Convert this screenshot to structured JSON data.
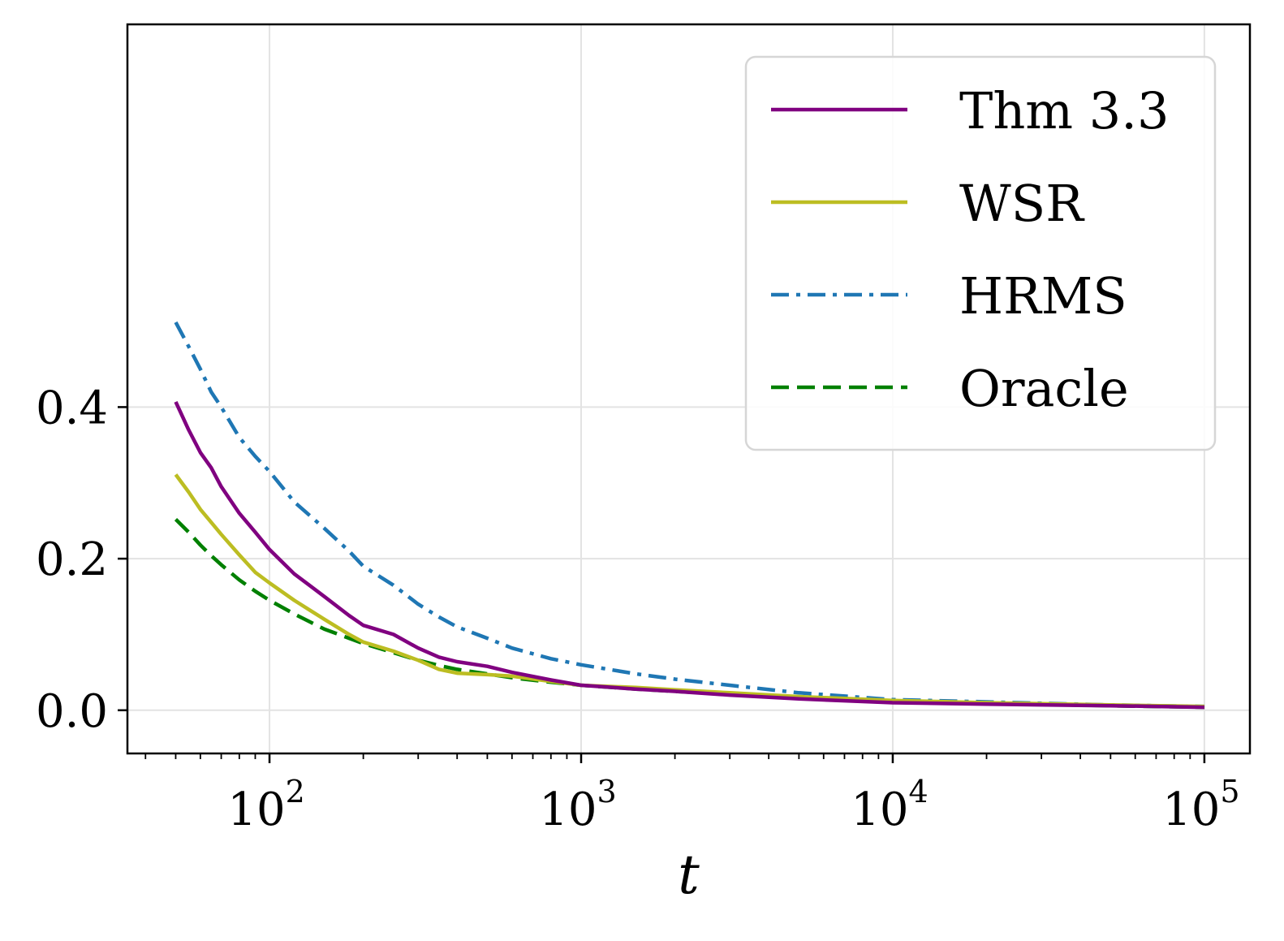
{
  "chart_data": {
    "type": "line",
    "xlabel": "t",
    "ylabel": "",
    "xscale": "log",
    "xlim": [
      35,
      140000
    ],
    "ylim": [
      -0.057,
      0.905
    ],
    "grid": true,
    "legend_position": "top-right",
    "x_ticks": [
      {
        "value": 100,
        "base": "10",
        "exp": "2"
      },
      {
        "value": 1000,
        "base": "10",
        "exp": "3"
      },
      {
        "value": 10000,
        "base": "10",
        "exp": "4"
      },
      {
        "value": 100000,
        "base": "10",
        "exp": "5"
      }
    ],
    "y_ticks": [
      {
        "value": 0.0,
        "label": "0.0"
      },
      {
        "value": 0.2,
        "label": "0.2"
      },
      {
        "value": 0.4,
        "label": "0.4"
      }
    ],
    "series": [
      {
        "name": "Thm 3.3",
        "color": "#800080",
        "dash": "solid",
        "x": [
          50,
          55,
          60,
          65,
          70,
          80,
          90,
          100,
          120,
          150,
          180,
          200,
          250,
          300,
          350,
          400,
          500,
          600,
          800,
          1000,
          1500,
          2000,
          3000,
          5000,
          10000,
          20000,
          50000,
          100000
        ],
        "y": [
          0.407,
          0.37,
          0.34,
          0.32,
          0.295,
          0.26,
          0.235,
          0.212,
          0.18,
          0.15,
          0.125,
          0.112,
          0.1,
          0.082,
          0.07,
          0.064,
          0.058,
          0.05,
          0.04,
          0.033,
          0.028,
          0.025,
          0.02,
          0.015,
          0.01,
          0.008,
          0.006,
          0.004
        ]
      },
      {
        "name": "WSR",
        "color": "#bcbd22",
        "dash": "solid",
        "x": [
          50,
          55,
          60,
          65,
          70,
          80,
          90,
          100,
          120,
          150,
          180,
          200,
          250,
          300,
          350,
          400,
          500,
          600,
          800,
          1000,
          1500,
          2000,
          3000,
          5000,
          10000,
          20000,
          50000,
          100000
        ],
        "y": [
          0.311,
          0.288,
          0.265,
          0.248,
          0.232,
          0.205,
          0.182,
          0.168,
          0.145,
          0.12,
          0.1,
          0.09,
          0.078,
          0.066,
          0.054,
          0.049,
          0.047,
          0.045,
          0.038,
          0.033,
          0.03,
          0.027,
          0.023,
          0.018,
          0.013,
          0.01,
          0.007,
          0.005
        ]
      },
      {
        "name": "HRMS",
        "color": "#1f77b4",
        "dash": "dashdot",
        "x": [
          50,
          55,
          60,
          65,
          70,
          80,
          90,
          100,
          120,
          150,
          180,
          200,
          250,
          300,
          350,
          400,
          500,
          600,
          800,
          1000,
          1500,
          2000,
          3000,
          5000,
          10000,
          20000,
          50000,
          100000
        ],
        "y": [
          0.512,
          0.48,
          0.45,
          0.42,
          0.4,
          0.36,
          0.335,
          0.315,
          0.275,
          0.24,
          0.21,
          0.19,
          0.165,
          0.14,
          0.123,
          0.11,
          0.095,
          0.082,
          0.068,
          0.06,
          0.048,
          0.041,
          0.033,
          0.023,
          0.014,
          0.011,
          0.007,
          0.005
        ]
      },
      {
        "name": "Oracle",
        "color": "#008000",
        "dash": "dashed",
        "x": [
          50,
          55,
          60,
          65,
          70,
          80,
          90,
          100,
          120,
          150,
          180,
          200,
          250,
          300,
          350,
          400,
          500,
          600,
          800,
          1000,
          1500,
          2000,
          3000,
          5000,
          10000,
          20000,
          50000,
          100000
        ],
        "y": [
          0.252,
          0.235,
          0.218,
          0.204,
          0.192,
          0.172,
          0.157,
          0.145,
          0.127,
          0.107,
          0.095,
          0.088,
          0.076,
          0.066,
          0.059,
          0.054,
          0.048,
          0.043,
          0.037,
          0.033,
          0.028,
          0.025,
          0.021,
          0.017,
          0.012,
          0.009,
          0.006,
          0.004
        ]
      }
    ]
  }
}
